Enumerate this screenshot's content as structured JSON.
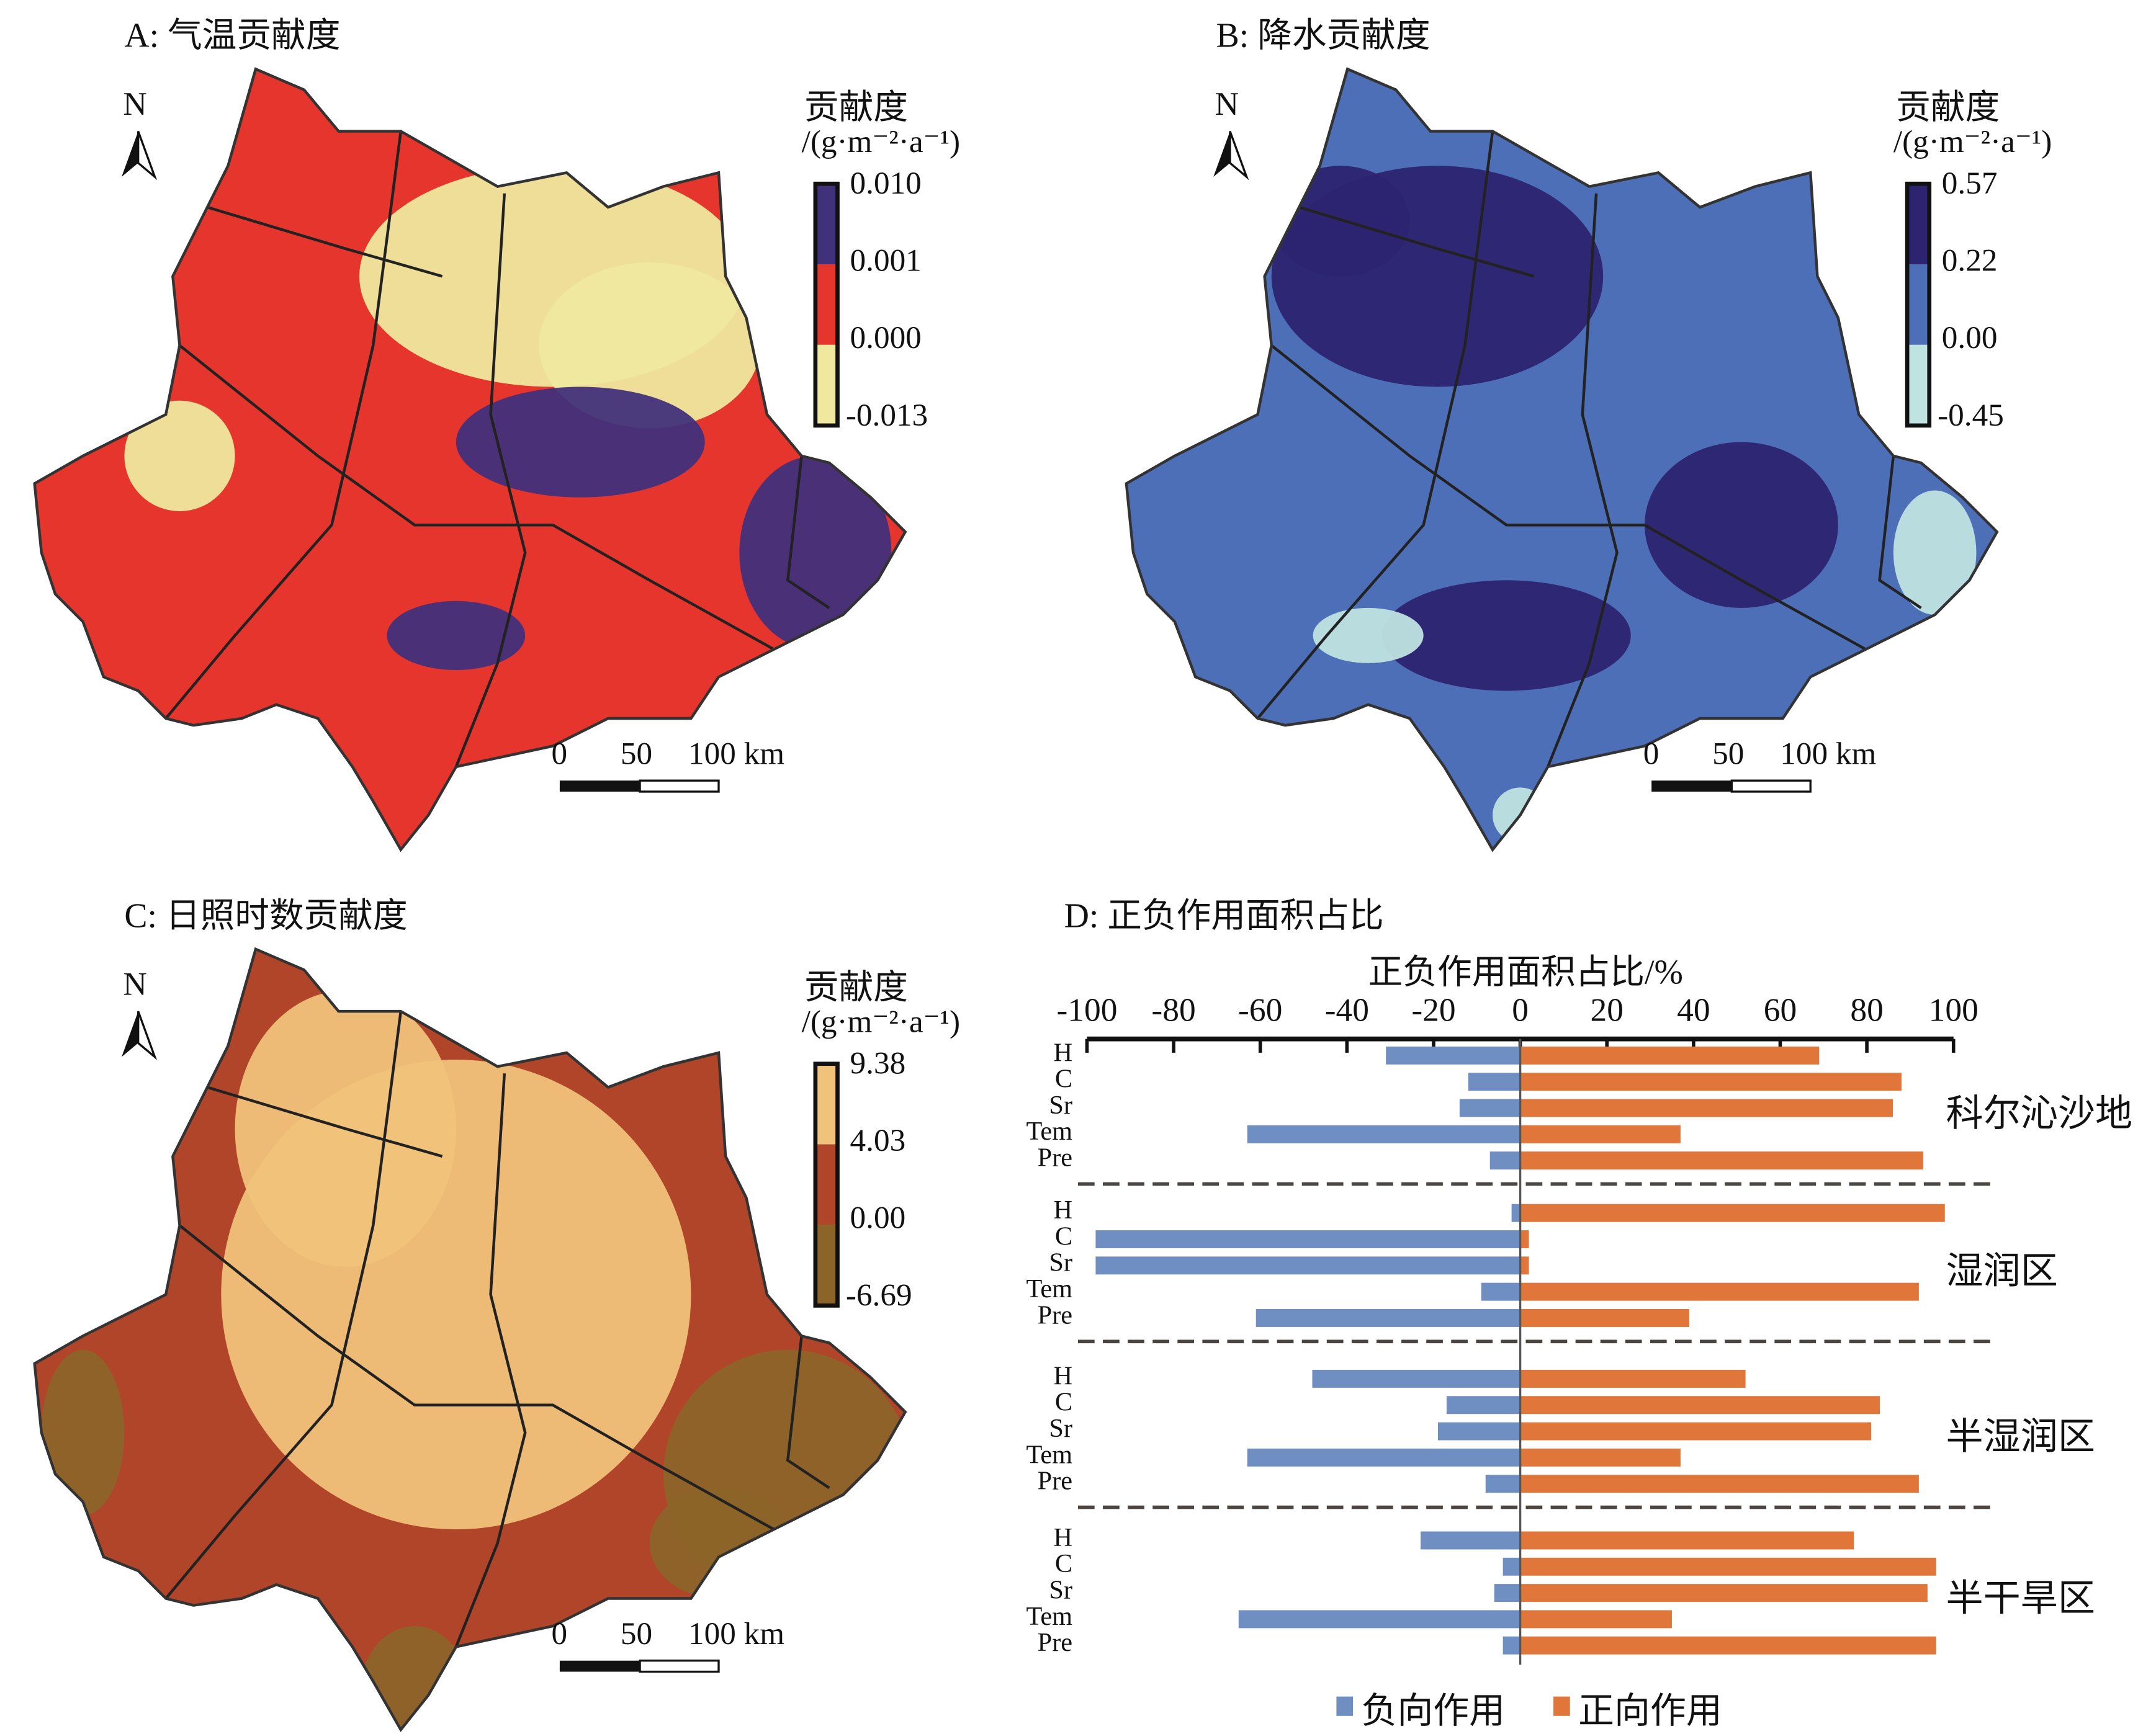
{
  "panels": [
    {
      "title": "A: 气温贡献度",
      "legend_title": "贡献度",
      "legend_unit": "/(g·m⁻²·a⁻¹)",
      "legend_values": [
        "0.010",
        "0.001",
        "0.000",
        "-0.013"
      ],
      "legend_colors": [
        "#41307a",
        "#e5352c",
        "#efe89e"
      ]
    },
    {
      "title": "B: 降水贡献度",
      "legend_title": "贡献度",
      "legend_unit": "/(g·m⁻²·a⁻¹)",
      "legend_values": [
        "0.57",
        "0.22",
        "0.00",
        "-0.45"
      ],
      "legend_colors": [
        "#2c2470",
        "#4d6fb8",
        "#bfe3e0"
      ]
    },
    {
      "title": "C: 日照时数贡献度",
      "legend_title": "贡献度",
      "legend_unit": "/(g·m⁻²·a⁻¹)",
      "legend_values": [
        "9.38",
        "4.03",
        "0.00",
        "-6.69"
      ],
      "legend_colors": [
        "#f0c27a",
        "#b0452a",
        "#8c6428"
      ]
    }
  ],
  "north_label": "N",
  "scale_bar": {
    "labels": [
      "0",
      "50",
      "100 km"
    ]
  },
  "chart_data": {
    "type": "bar",
    "title": "D: 正负作用面积占比",
    "xlabel": "正负作用面积占比/%",
    "xlim": [
      -100,
      100
    ],
    "xticks": [
      "-100",
      "-80",
      "-60",
      "-40",
      "-20",
      "0",
      "20",
      "40",
      "60",
      "80",
      "100"
    ],
    "categories": [
      "H",
      "C",
      "Sr",
      "Tem",
      "Pre"
    ],
    "groups": [
      {
        "name": "科尔沁沙地",
        "negative": [
          -31,
          -12,
          -14,
          -63,
          -7
        ],
        "positive": [
          69,
          88,
          86,
          37,
          93
        ]
      },
      {
        "name": "湿润区",
        "negative": [
          -2,
          -98,
          -98,
          -9,
          -61
        ],
        "positive": [
          98,
          2,
          2,
          92,
          39
        ]
      },
      {
        "name": "半湿润区",
        "negative": [
          -48,
          -17,
          -19,
          -63,
          -8
        ],
        "positive": [
          52,
          83,
          81,
          37,
          92
        ]
      },
      {
        "name": "半干旱区",
        "negative": [
          -23,
          -4,
          -6,
          -65,
          -4
        ],
        "positive": [
          77,
          96,
          94,
          35,
          96
        ]
      }
    ],
    "series": [
      {
        "name": "负向作用",
        "color": "#6f8fc2"
      },
      {
        "name": "正向作用",
        "color": "#e0763a"
      }
    ],
    "legend_position": "bottom"
  }
}
